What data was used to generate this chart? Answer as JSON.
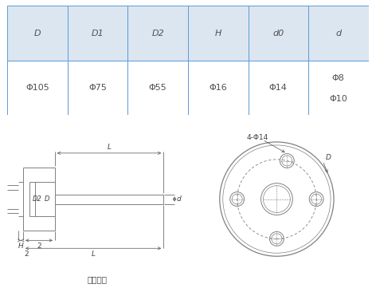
{
  "table": {
    "headers": [
      "D",
      "D1",
      "D2",
      "H",
      "d0",
      "d"
    ],
    "header_bg": "#dce6f1",
    "border_color": "#5b9bd5",
    "text_color": "#505050",
    "font_size": 8
  },
  "diagram": {
    "line_color": "#808080",
    "dim_color": "#505050",
    "text_color": "#404040",
    "font_size": 6.5,
    "caption": "固定法兰"
  }
}
